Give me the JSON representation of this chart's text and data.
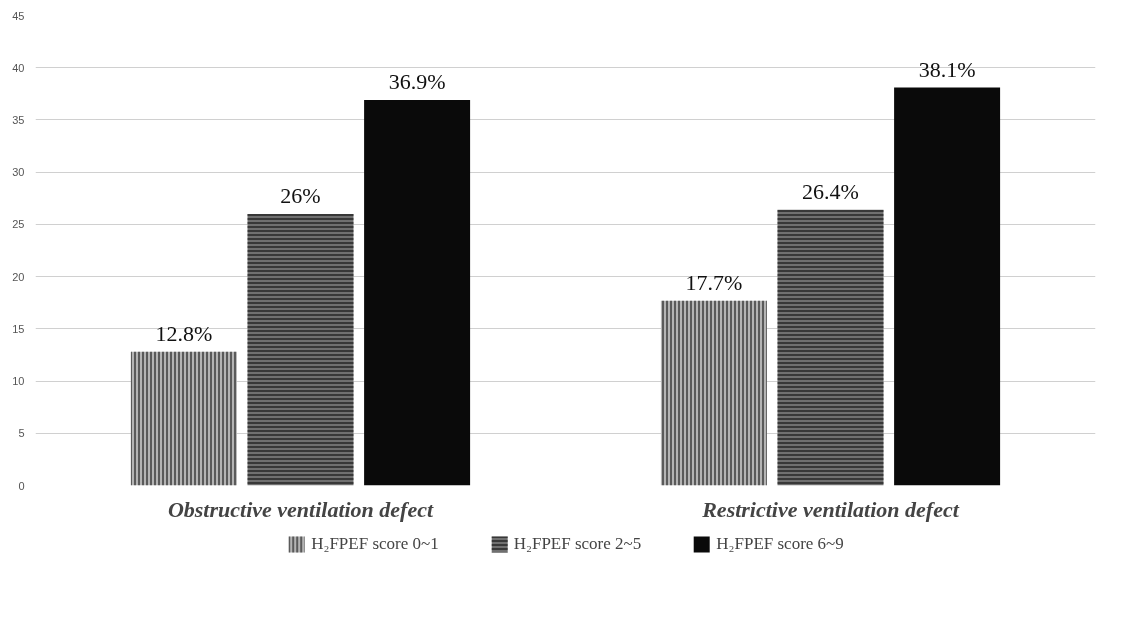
{
  "chart_data": {
    "type": "bar",
    "categories": [
      "Obstructive ventilation defect",
      "Restrictive ventilation defect"
    ],
    "series": [
      {
        "name": "H₂FPEF score 0~1",
        "color": "#b4b4b4",
        "values": [
          12.8,
          17.7
        ],
        "value_labels": [
          "12.8%",
          "17.7%"
        ]
      },
      {
        "name": "H₂FPEF score 2~5",
        "color": "#707070",
        "values": [
          26,
          26.4
        ],
        "value_labels": [
          "26%",
          "26.4%"
        ]
      },
      {
        "name": "H₂FPEF score 6~9",
        "color": "#0a0a0a",
        "values": [
          36.9,
          38.1
        ],
        "value_labels": [
          "36.9%",
          "38.1%"
        ]
      }
    ],
    "ylim": [
      0,
      45
    ],
    "yticks": [
      0,
      5,
      10,
      15,
      20,
      25,
      30,
      35,
      40,
      45
    ],
    "grid": "y",
    "legend": "bottom"
  }
}
